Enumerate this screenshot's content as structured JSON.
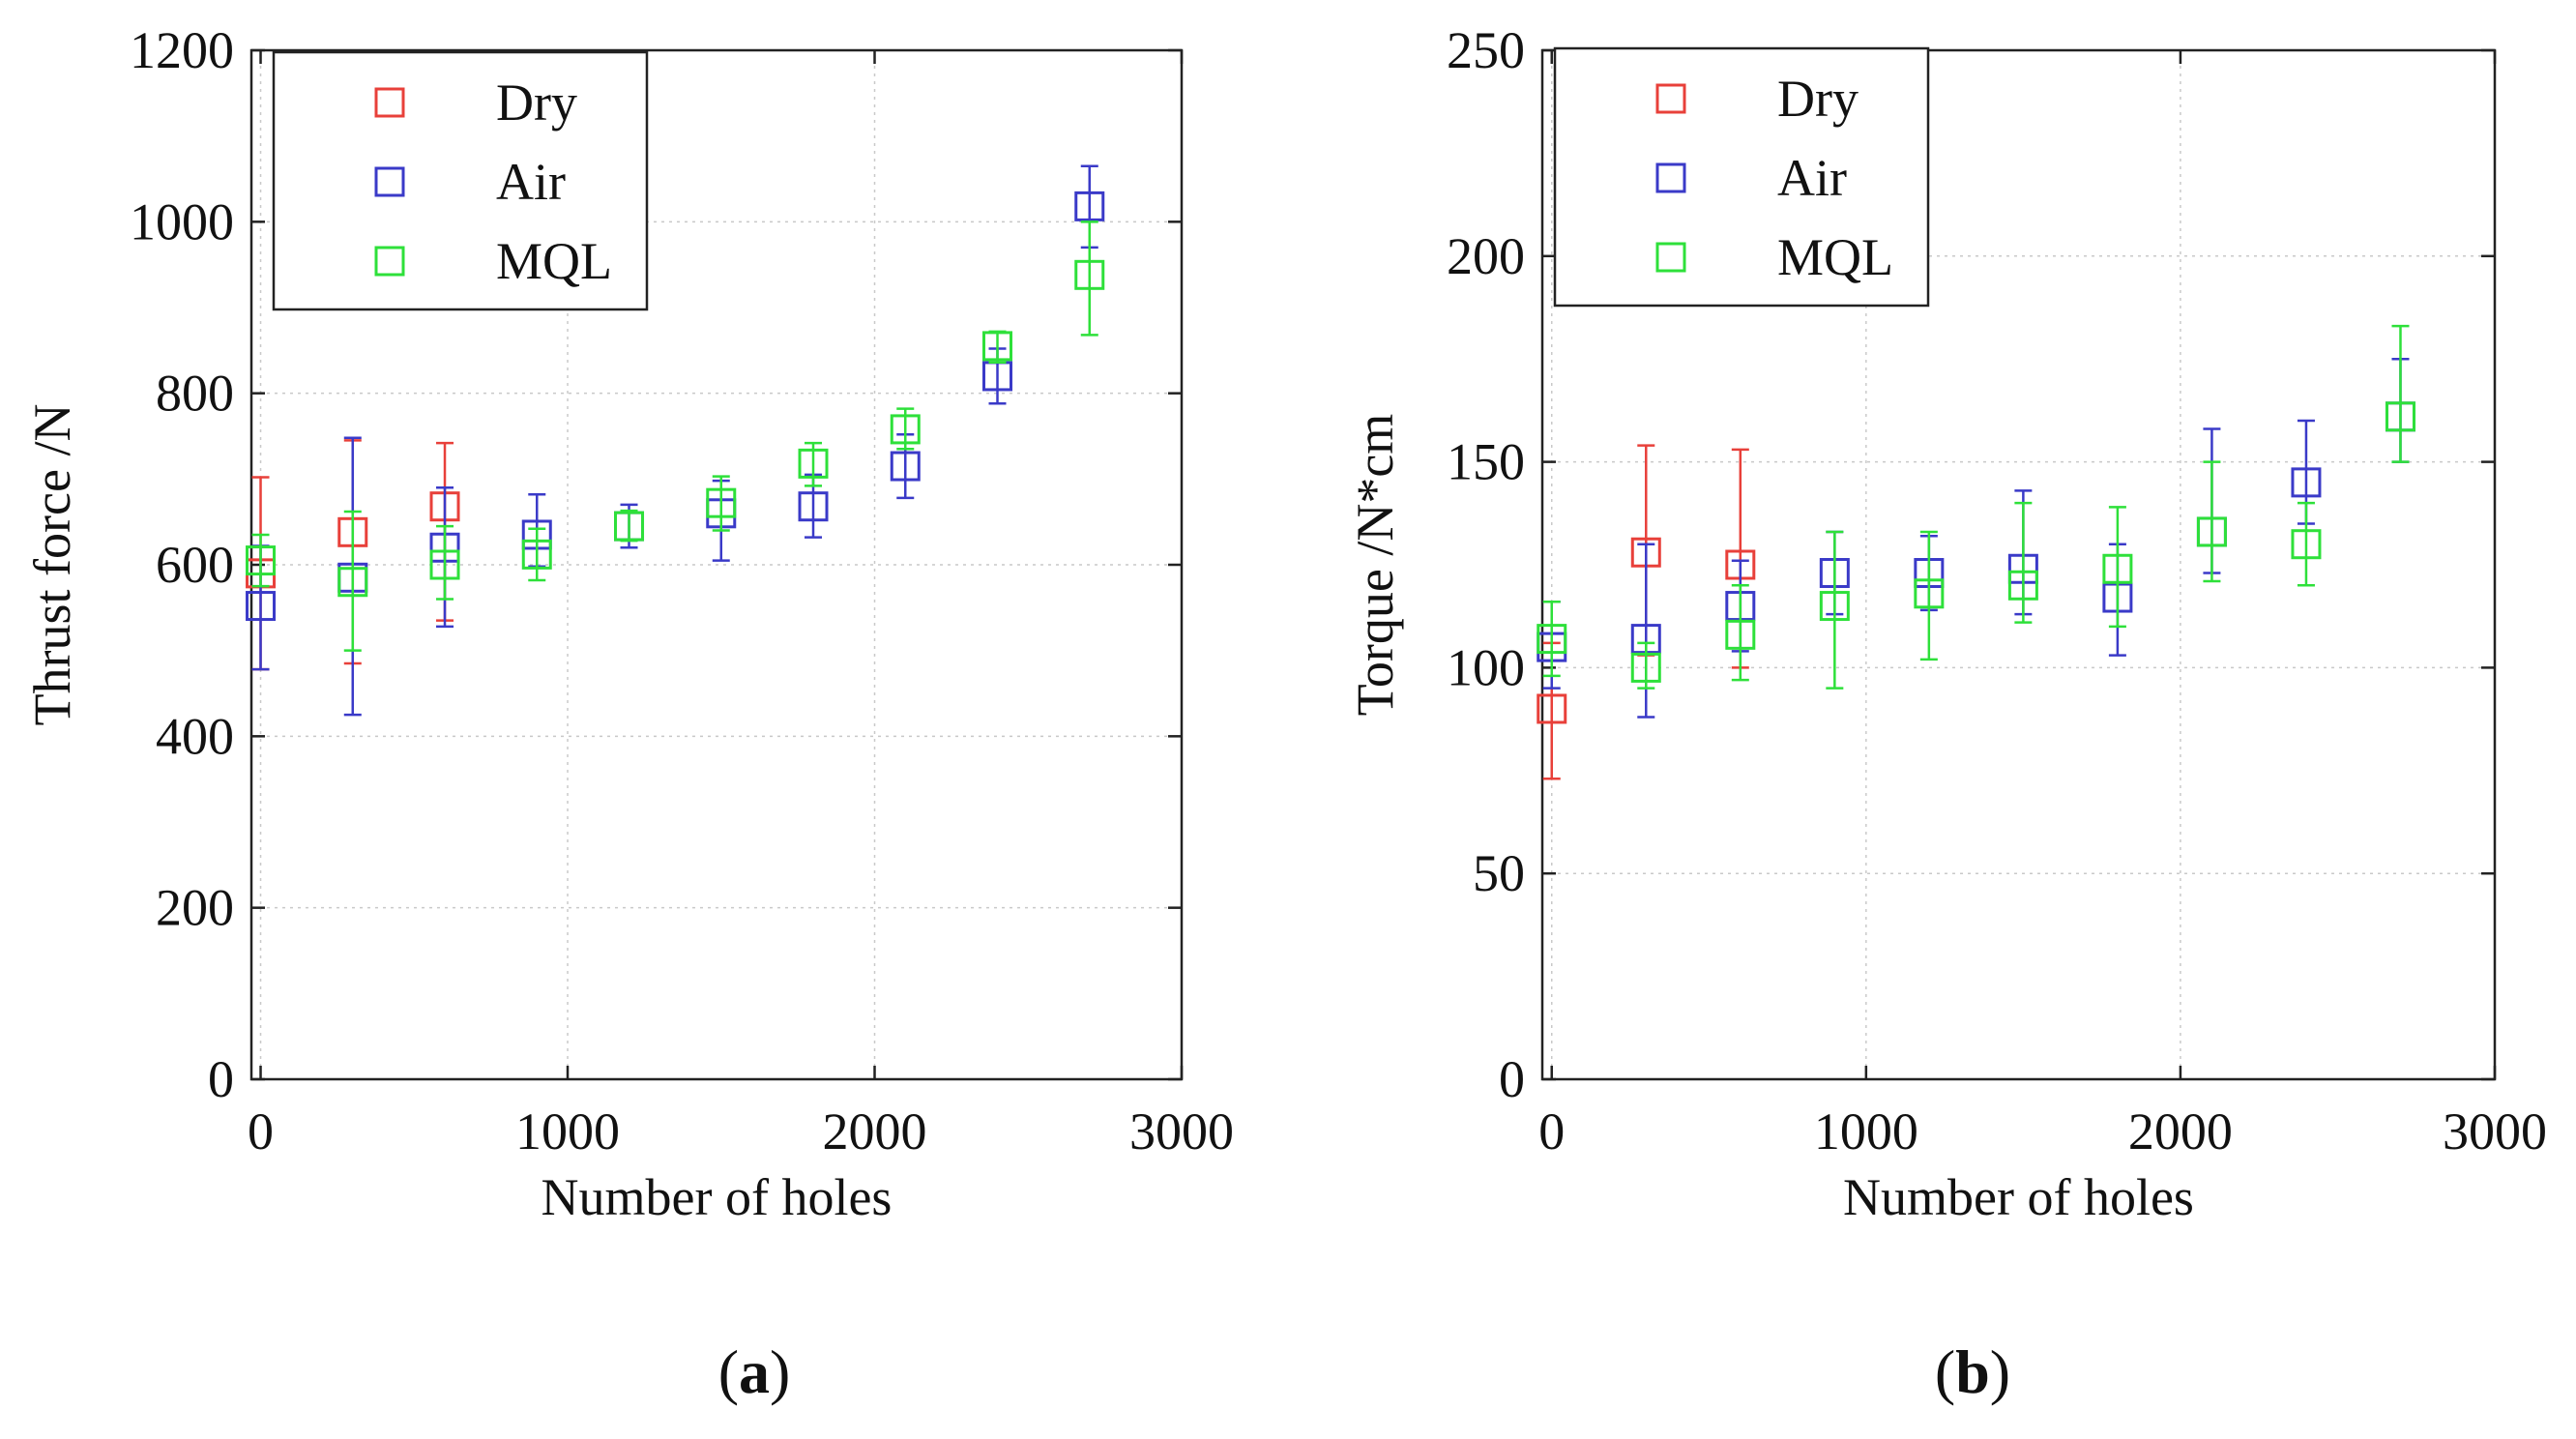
{
  "chart_data": [
    {
      "type": "scatter",
      "panel_label": "a",
      "xlabel": "Number of holes",
      "ylabel": "Thrust force /N",
      "xlim": [
        -30,
        3000
      ],
      "ylim": [
        0,
        1200
      ],
      "xticks": [
        0,
        1000,
        2000,
        3000
      ],
      "yticks": [
        0,
        200,
        400,
        600,
        800,
        1000,
        1200
      ],
      "grid": true,
      "legend_position": "top-left",
      "series": [
        {
          "name": "Dry",
          "color": "#e8403a",
          "marker": "square",
          "points": [
            {
              "x": 0,
              "y": 590,
              "low": 478,
              "high": 702
            },
            {
              "x": 300,
              "y": 638,
              "low": 485,
              "high": 745
            },
            {
              "x": 600,
              "y": 668,
              "low": 535,
              "high": 742
            }
          ]
        },
        {
          "name": "Air",
          "color": "#3a3ac8",
          "marker": "square",
          "points": [
            {
              "x": 0,
              "y": 552,
              "low": 478,
              "high": 622
            },
            {
              "x": 300,
              "y": 585,
              "low": 425,
              "high": 748
            },
            {
              "x": 600,
              "y": 620,
              "low": 528,
              "high": 690
            },
            {
              "x": 900,
              "y": 635,
              "low": 598,
              "high": 682
            },
            {
              "x": 1200,
              "y": 645,
              "low": 620,
              "high": 670
            },
            {
              "x": 1500,
              "y": 660,
              "low": 605,
              "high": 698
            },
            {
              "x": 1800,
              "y": 668,
              "low": 632,
              "high": 705
            },
            {
              "x": 2100,
              "y": 715,
              "low": 678,
              "high": 752
            },
            {
              "x": 2400,
              "y": 820,
              "low": 788,
              "high": 852
            },
            {
              "x": 2700,
              "y": 1018,
              "low": 970,
              "high": 1065
            }
          ]
        },
        {
          "name": "MQL",
          "color": "#2ee03a",
          "marker": "square",
          "points": [
            {
              "x": 0,
              "y": 605,
              "low": 575,
              "high": 635
            },
            {
              "x": 300,
              "y": 580,
              "low": 500,
              "high": 662
            },
            {
              "x": 600,
              "y": 600,
              "low": 560,
              "high": 645
            },
            {
              "x": 900,
              "y": 612,
              "low": 582,
              "high": 642
            },
            {
              "x": 1200,
              "y": 645,
              "low": 628,
              "high": 663
            },
            {
              "x": 1500,
              "y": 672,
              "low": 640,
              "high": 703
            },
            {
              "x": 1800,
              "y": 718,
              "low": 692,
              "high": 742
            },
            {
              "x": 2100,
              "y": 758,
              "low": 735,
              "high": 782
            },
            {
              "x": 2400,
              "y": 855,
              "low": 836,
              "high": 872
            },
            {
              "x": 2700,
              "y": 938,
              "low": 868,
              "high": 1000
            }
          ]
        }
      ]
    },
    {
      "type": "scatter",
      "panel_label": "b",
      "xlabel": "Number of holes",
      "ylabel": "Torque /N*cm",
      "xlim": [
        -30,
        3000
      ],
      "ylim": [
        0,
        250
      ],
      "xticks": [
        0,
        1000,
        2000,
        3000
      ],
      "yticks": [
        0,
        50,
        100,
        150,
        200,
        250
      ],
      "grid": true,
      "legend_position": "top-left",
      "series": [
        {
          "name": "Dry",
          "color": "#e8403a",
          "marker": "square",
          "points": [
            {
              "x": 0,
              "y": 90,
              "low": 73,
              "high": 106
            },
            {
              "x": 300,
              "y": 128,
              "low": 103,
              "high": 154
            },
            {
              "x": 600,
              "y": 125,
              "low": 100,
              "high": 153
            }
          ]
        },
        {
          "name": "Air",
          "color": "#3a3ac8",
          "marker": "square",
          "points": [
            {
              "x": 0,
              "y": 105,
              "low": 95,
              "high": 116
            },
            {
              "x": 300,
              "y": 107,
              "low": 88,
              "high": 130
            },
            {
              "x": 600,
              "y": 115,
              "low": 104,
              "high": 126
            },
            {
              "x": 900,
              "y": 123,
              "low": 113,
              "high": 133
            },
            {
              "x": 1200,
              "y": 123,
              "low": 114,
              "high": 132
            },
            {
              "x": 1500,
              "y": 124,
              "low": 113,
              "high": 143
            },
            {
              "x": 1800,
              "y": 117,
              "low": 103,
              "high": 130
            },
            {
              "x": 2100,
              "y": 133,
              "low": 123,
              "high": 158
            },
            {
              "x": 2400,
              "y": 145,
              "low": 135,
              "high": 160
            },
            {
              "x": 2700,
              "y": 161,
              "low": 150,
              "high": 175
            }
          ]
        },
        {
          "name": "MQL",
          "color": "#2ee03a",
          "marker": "square",
          "points": [
            {
              "x": 0,
              "y": 107,
              "low": 98,
              "high": 116
            },
            {
              "x": 300,
              "y": 100,
              "low": 95,
              "high": 106
            },
            {
              "x": 600,
              "y": 108,
              "low": 97,
              "high": 120
            },
            {
              "x": 900,
              "y": 115,
              "low": 95,
              "high": 133
            },
            {
              "x": 1200,
              "y": 118,
              "low": 102,
              "high": 133
            },
            {
              "x": 1500,
              "y": 120,
              "low": 111,
              "high": 140
            },
            {
              "x": 1800,
              "y": 124,
              "low": 110,
              "high": 139
            },
            {
              "x": 2100,
              "y": 133,
              "low": 121,
              "high": 150
            },
            {
              "x": 2400,
              "y": 130,
              "low": 120,
              "high": 140
            },
            {
              "x": 2700,
              "y": 161,
              "low": 150,
              "high": 183
            }
          ]
        }
      ]
    }
  ]
}
